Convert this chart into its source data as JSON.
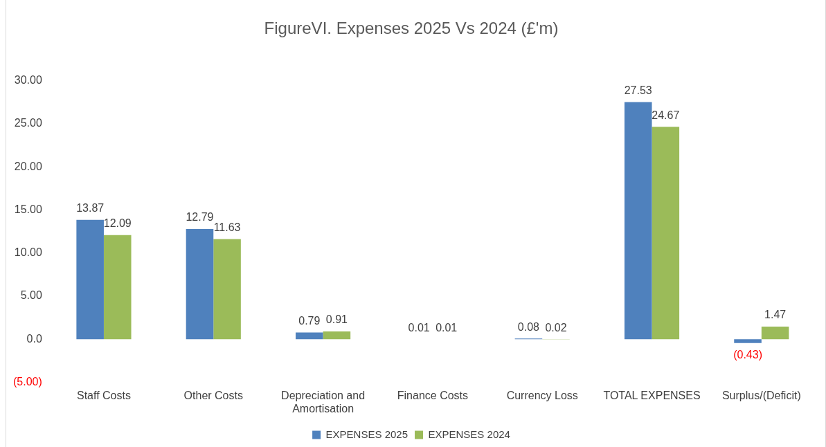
{
  "chart_data": {
    "type": "bar",
    "title": "FigureVI. Expenses 2025 Vs 2024 (£'m)",
    "categories": [
      "Staff Costs",
      "Other Costs",
      "Depreciation and Amortisation",
      "Finance Costs",
      "Currency Loss",
      "TOTAL EXPENSES",
      "Surplus/(Deficit)"
    ],
    "series": [
      {
        "name": "EXPENSES 2025",
        "color": "#4f81bd",
        "values": [
          13.87,
          12.79,
          0.79,
          0.01,
          0.08,
          27.53,
          -0.43
        ],
        "value_labels": [
          "13.87",
          "12.79",
          "0.79",
          "0.01",
          "0.08",
          "27.53",
          "(0.43)"
        ]
      },
      {
        "name": "EXPENSES 2024",
        "color": "#9bbb59",
        "values": [
          12.09,
          11.63,
          0.91,
          0.01,
          0.02,
          24.67,
          1.47
        ],
        "value_labels": [
          "12.09",
          "11.63",
          "0.91",
          "0.01",
          "0.02",
          "24.67",
          "1.47"
        ]
      }
    ],
    "ylim": [
      -5,
      30
    ],
    "yticks": [
      {
        "value": -5,
        "label": "(5.00)"
      },
      {
        "value": 0,
        "label": "0.0"
      },
      {
        "value": 5,
        "label": "5.00"
      },
      {
        "value": 10,
        "label": "10.00"
      },
      {
        "value": 15,
        "label": "15.00"
      },
      {
        "value": 20,
        "label": "20.00"
      },
      {
        "value": 25,
        "label": "25.00"
      },
      {
        "value": 30,
        "label": "30.00"
      }
    ],
    "grid": false,
    "legend": "bottom"
  }
}
